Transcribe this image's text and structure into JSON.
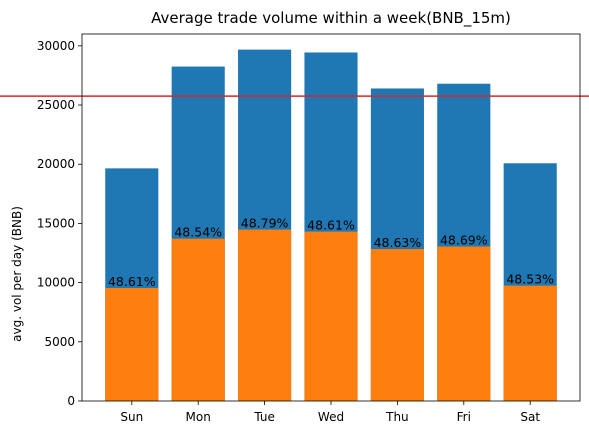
{
  "chart_data": {
    "type": "bar",
    "title": "Average trade volume within a week(BNB_15m)",
    "xlabel": "",
    "ylabel": "avg. vol per day (BNB)",
    "ylim": [
      0,
      31000
    ],
    "yticks": [
      0,
      5000,
      10000,
      15000,
      20000,
      25000,
      30000
    ],
    "categories": [
      "Sun",
      "Mon",
      "Tue",
      "Wed",
      "Thu",
      "Fri",
      "Sat"
    ],
    "series": [
      {
        "values": [
          19650,
          28250,
          29680,
          29440,
          26400,
          26800,
          20080
        ],
        "color": "#1f77b4"
      },
      {
        "values": [
          9550,
          13710,
          14480,
          14310,
          12840,
          13050,
          9745
        ],
        "color": "#ff7f0e"
      }
    ],
    "data_labels": [
      "48.61%",
      "48.54%",
      "48.79%",
      "48.61%",
      "48.63%",
      "48.69%",
      "48.53%"
    ],
    "reference_line": {
      "value": 25750,
      "color": "#d62728"
    },
    "grid": false,
    "legend": "none"
  }
}
